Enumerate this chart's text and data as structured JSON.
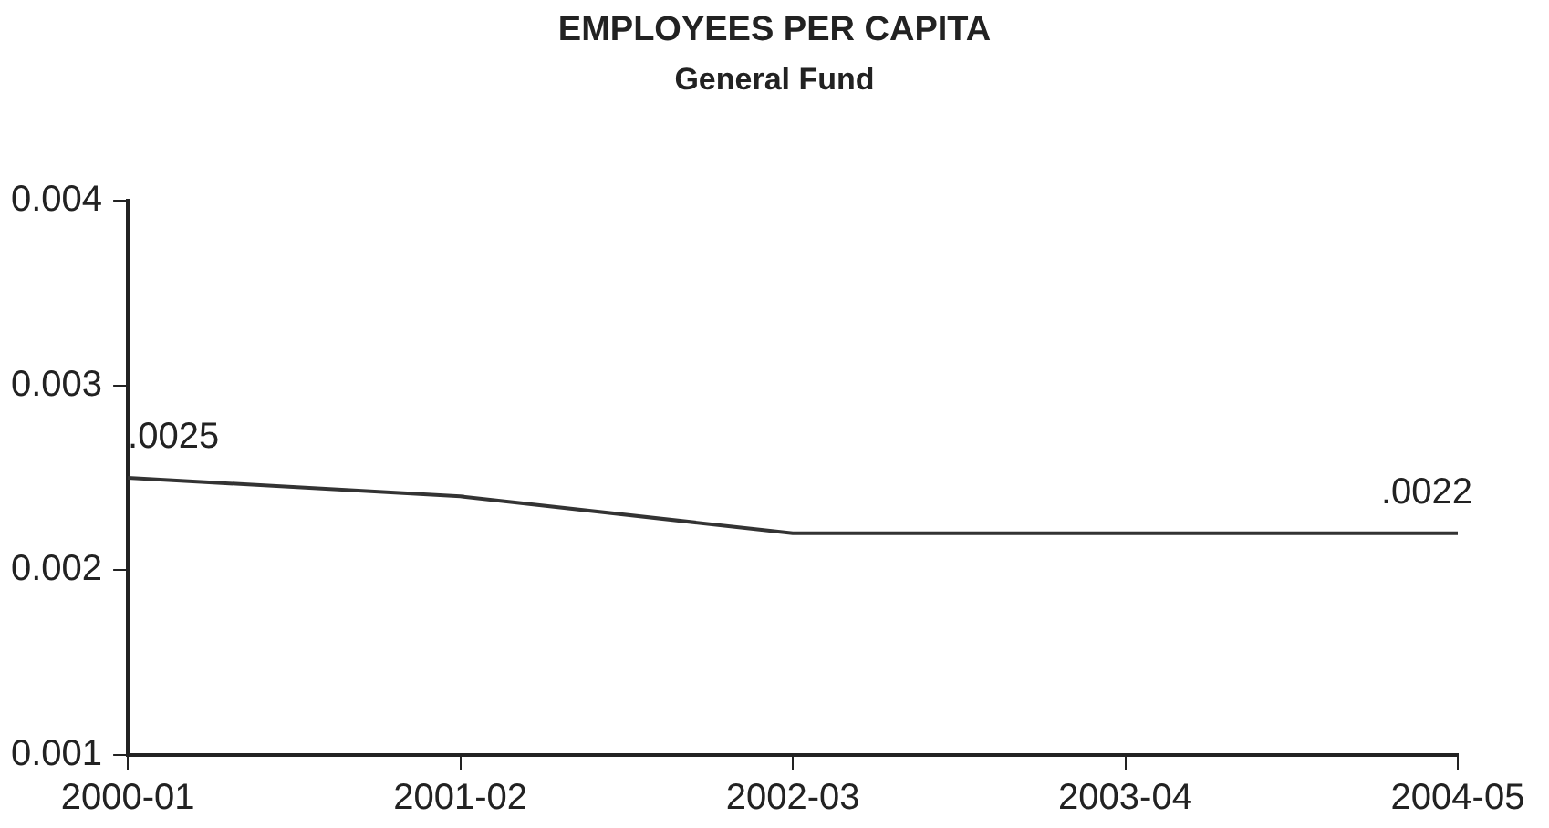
{
  "chart_data": {
    "type": "line",
    "title": "EMPLOYEES PER CAPITA",
    "subtitle": "General Fund",
    "categories": [
      "2000-01",
      "2001-02",
      "2002-03",
      "2003-04",
      "2004-05"
    ],
    "series": [
      {
        "color": "#333333",
        "values": [
          0.0025,
          0.0024,
          0.0022,
          0.0022,
          0.0022
        ],
        "value_labels": [
          ".0025",
          null,
          null,
          null,
          ".0022"
        ]
      }
    ],
    "ylim": [
      0.001,
      0.004
    ],
    "yticks": [
      0.001,
      0.002,
      0.003,
      0.004
    ],
    "grid": false,
    "legend": false,
    "marker": "none",
    "line_style": "solid"
  }
}
